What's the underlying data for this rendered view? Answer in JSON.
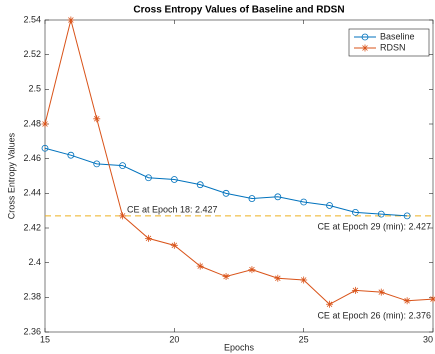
{
  "chart_data": {
    "type": "line",
    "title": "Cross Entropy Values of Baseline and RDSN",
    "x_label": "Epochs",
    "y_label": "Cross Entropy Values",
    "x": [
      15,
      16,
      17,
      18,
      19,
      20,
      21,
      22,
      23,
      24,
      25,
      26,
      27,
      28,
      29,
      30
    ],
    "series": [
      {
        "name": "Baseline",
        "color": "#0072bd",
        "marker": "circle",
        "values": [
          2.466,
          2.462,
          2.457,
          2.456,
          2.449,
          2.448,
          2.445,
          2.44,
          2.437,
          2.438,
          2.435,
          2.433,
          2.429,
          2.428,
          2.427,
          null
        ]
      },
      {
        "name": "RDSN",
        "color": "#d95319",
        "marker": "star",
        "values": [
          2.48,
          2.54,
          2.483,
          2.427,
          2.414,
          2.41,
          2.398,
          2.392,
          2.396,
          2.391,
          2.39,
          2.376,
          2.384,
          2.383,
          2.378,
          2.379
        ]
      }
    ],
    "hline": {
      "value": 2.427,
      "color": "#edb120"
    },
    "annotations": [
      "CE at Epoch 18: 2.427",
      "CE at Epoch 29 (min): 2.427",
      "CE at Epoch 26 (min): 2.376"
    ],
    "xlim": [
      15,
      30
    ],
    "xticks": [
      15,
      20,
      25,
      30
    ],
    "ylim": [
      2.36,
      2.54
    ],
    "yticks": [
      {
        "value": 2.36,
        "label": "2.36"
      },
      {
        "value": 2.38,
        "label": "2.38"
      },
      {
        "value": 2.4,
        "label": "2.4"
      },
      {
        "value": 2.42,
        "label": "2.42"
      },
      {
        "value": 2.44,
        "label": "2.44"
      },
      {
        "value": 2.46,
        "label": "2.46"
      },
      {
        "value": 2.48,
        "label": "2.48"
      },
      {
        "value": 2.5,
        "label": "2.5"
      },
      {
        "value": 2.52,
        "label": "2.52"
      },
      {
        "value": 2.54,
        "label": "2.54"
      }
    ],
    "grid": false,
    "legend": "top-right"
  }
}
